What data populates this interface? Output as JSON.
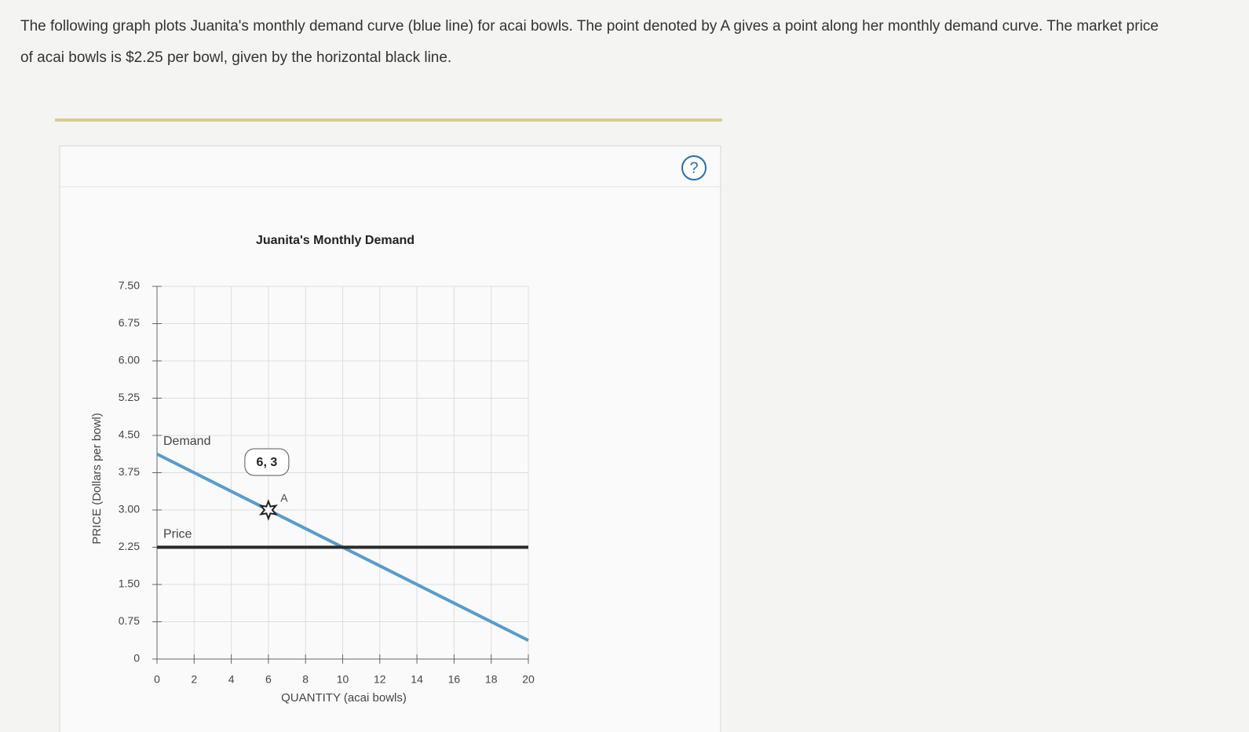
{
  "intro": "The following graph plots Juanita's monthly demand curve (blue line) for acai bowls. The point denoted by A gives a point along her monthly demand curve. The market price of acai bowls is $2.25 per bowl, given by the horizontal black line.",
  "help": "?",
  "chart_data": {
    "type": "line",
    "title": "Juanita's Monthly Demand",
    "x_label": "QUANTITY (acai bowls)",
    "y_label": "PRICE (Dollars per bowl)",
    "xlim": [
      0,
      20
    ],
    "ylim": [
      0,
      7.5
    ],
    "xticks": [
      0,
      2,
      4,
      6,
      8,
      10,
      12,
      14,
      16,
      18,
      20
    ],
    "yticks": [
      0,
      0.75,
      {
        "value": 1.5,
        "label": "1.50"
      },
      2.25,
      {
        "value": 3,
        "label": "3.00"
      },
      3.75,
      {
        "value": 4.5,
        "label": "4.50"
      },
      5.25,
      {
        "value": 6,
        "label": "6.00"
      },
      6.75,
      {
        "value": 7.5,
        "label": "7.50"
      }
    ],
    "grid": true,
    "series": [
      {
        "name": "Demand",
        "color": "#5b9bc7",
        "x": [
          0,
          20
        ],
        "values": [
          4.125,
          0.375
        ]
      },
      {
        "name": "Price",
        "color": "#2a2a2a",
        "x": [
          0,
          20
        ],
        "values": [
          2.25,
          2.25
        ]
      }
    ],
    "points": [
      {
        "name": "A",
        "x": 6,
        "y": 3,
        "label": "6, 3"
      }
    ]
  }
}
